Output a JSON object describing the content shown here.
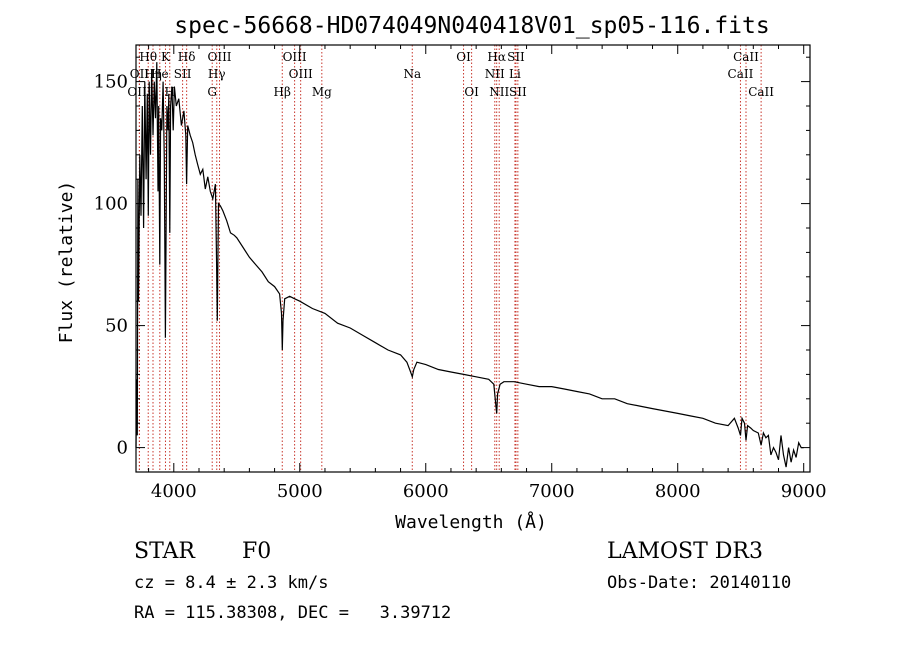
{
  "chart_data": {
    "type": "line",
    "title": "spec-56668-HD074049N040418V01_sp05-116.fits",
    "xlabel": "Wavelength (Å)",
    "ylabel": "Flux (relative)",
    "xlim": [
      3700,
      9050
    ],
    "ylim": [
      -10,
      165
    ],
    "xticks": [
      4000,
      5000,
      6000,
      7000,
      8000,
      9000
    ],
    "yticks": [
      0,
      50,
      100,
      150
    ],
    "series": [
      {
        "name": "flux",
        "x": [
          3700,
          3705,
          3710,
          3715,
          3720,
          3730,
          3740,
          3750,
          3760,
          3770,
          3780,
          3790,
          3798,
          3805,
          3815,
          3825,
          3835,
          3845,
          3855,
          3865,
          3875,
          3880,
          3889,
          3895,
          3905,
          3915,
          3925,
          3933,
          3945,
          3955,
          3960,
          3968,
          3975,
          3985,
          3995,
          4005,
          4020,
          4040,
          4060,
          4080,
          4095,
          4102,
          4110,
          4130,
          4150,
          4170,
          4190,
          4210,
          4230,
          4250,
          4270,
          4290,
          4310,
          4330,
          4340,
          4345,
          4355,
          4370,
          4390,
          4420,
          4450,
          4480,
          4500,
          4550,
          4600,
          4650,
          4700,
          4750,
          4800,
          4840,
          4855,
          4861,
          4867,
          4880,
          4920,
          4960,
          5000,
          5100,
          5200,
          5300,
          5400,
          5500,
          5600,
          5700,
          5800,
          5850,
          5880,
          5893,
          5905,
          5930,
          6000,
          6100,
          6200,
          6300,
          6400,
          6500,
          6540,
          6555,
          6563,
          6570,
          6590,
          6620,
          6700,
          6800,
          6900,
          7000,
          7100,
          7200,
          7300,
          7400,
          7500,
          7600,
          7700,
          7800,
          7900,
          8000,
          8100,
          8200,
          8300,
          8400,
          8450,
          8480,
          8498,
          8510,
          8530,
          8542,
          8555,
          8580,
          8600,
          8640,
          8662,
          8680,
          8700,
          8720,
          8740,
          8760,
          8780,
          8800,
          8820,
          8840,
          8860,
          8880,
          8900,
          8920,
          8940,
          8960,
          8980,
          9000
        ],
        "y": [
          0,
          28,
          5,
          110,
          60,
          120,
          95,
          140,
          90,
          150,
          110,
          145,
          95,
          150,
          120,
          155,
          128,
          150,
          135,
          158,
          105,
          140,
          75,
          135,
          130,
          150,
          118,
          45,
          140,
          130,
          145,
          88,
          140,
          148,
          130,
          148,
          140,
          143,
          132,
          138,
          128,
          108,
          132,
          128,
          125,
          120,
          116,
          112,
          114,
          106,
          111,
          105,
          102,
          108,
          75,
          52,
          100,
          99,
          97,
          93,
          88,
          87,
          86,
          82,
          78,
          75,
          72,
          68,
          66,
          63,
          55,
          40,
          52,
          61,
          62,
          61,
          60,
          57,
          55,
          51,
          49,
          46,
          43,
          40,
          38,
          35,
          31,
          29,
          32,
          35,
          34,
          32,
          31,
          30,
          29,
          28,
          26,
          18,
          14,
          22,
          26,
          27,
          27,
          26,
          25,
          25,
          24,
          23,
          22,
          20,
          20,
          18,
          17,
          16,
          15,
          14,
          13,
          12,
          10,
          9,
          12,
          8,
          5,
          12,
          10,
          3,
          9,
          8,
          7,
          6,
          1,
          6,
          4,
          5,
          -3,
          0,
          -2,
          -5,
          5,
          -3,
          -8,
          0,
          -6,
          -1,
          -4,
          2,
          0,
          0
        ]
      }
    ],
    "annotations": [
      {
        "label": "Hθ",
        "x": 3797,
        "row": 1
      },
      {
        "label": "OII",
        "x": 3727,
        "row": 2
      },
      {
        "label": "OIII",
        "x": 3727,
        "row": 3
      },
      {
        "label": "Hη",
        "x": 3835,
        "row": 2
      },
      {
        "label": "K",
        "x": 3934,
        "row": 1
      },
      {
        "label": "He",
        "x": 3889,
        "row": 2
      },
      {
        "label": "H",
        "x": 3968,
        "row": 3
      },
      {
        "label": "Hδ",
        "x": 4102,
        "row": 1
      },
      {
        "label": "SII",
        "x": 4070,
        "row": 2
      },
      {
        "label": "OIII",
        "x": 4363,
        "row": 1
      },
      {
        "label": "Hγ",
        "x": 4341,
        "row": 2
      },
      {
        "label": "G",
        "x": 4305,
        "row": 3
      },
      {
        "label": "OIII",
        "x": 4959,
        "row": 1
      },
      {
        "label": "OIII",
        "x": 5007,
        "row": 2
      },
      {
        "label": "Hβ",
        "x": 4861,
        "row": 3
      },
      {
        "label": "Mg",
        "x": 5175,
        "row": 3
      },
      {
        "label": "Na",
        "x": 5893,
        "row": 2
      },
      {
        "label": "OI",
        "x": 6300,
        "row": 1
      },
      {
        "label": "OI",
        "x": 6364,
        "row": 3
      },
      {
        "label": "Hα",
        "x": 6563,
        "row": 1
      },
      {
        "label": "NII",
        "x": 6548,
        "row": 2
      },
      {
        "label": "NII",
        "x": 6583,
        "row": 3
      },
      {
        "label": "SII",
        "x": 6716,
        "row": 1
      },
      {
        "label": "Li",
        "x": 6708,
        "row": 2
      },
      {
        "label": "SII",
        "x": 6731,
        "row": 3
      },
      {
        "label": "CaII",
        "x": 8542,
        "row": 1
      },
      {
        "label": "CaII",
        "x": 8498,
        "row": 2
      },
      {
        "label": "CaII",
        "x": 8662,
        "row": 3
      }
    ]
  },
  "info": {
    "object_class": "STAR",
    "subclass": "F0",
    "survey": "LAMOST DR3",
    "cz": "cz = 8.4 ± 2.3 km/s",
    "obs_date": "Obs-Date: 20140110",
    "coords": "RA = 115.38308, DEC =   3.39712"
  }
}
